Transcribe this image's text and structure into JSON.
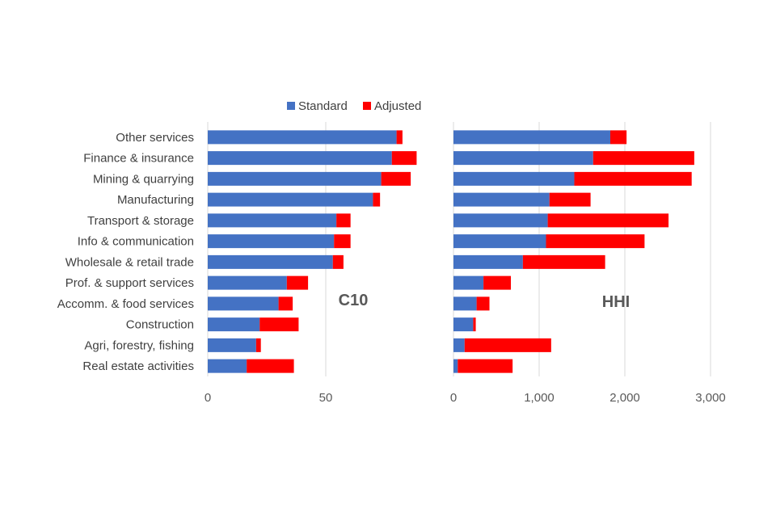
{
  "legend": {
    "standard_label": "Standard",
    "adjusted_label": "Adjusted"
  },
  "colors": {
    "standard": "#4472C4",
    "adjusted": "#FF0000",
    "grid": "#D9D9D9"
  },
  "chart_data": [
    {
      "type": "bar",
      "orientation": "horizontal",
      "stacked": true,
      "title": "C10",
      "categories": [
        "Other services",
        "Finance & insurance",
        "Mining & quarrying",
        "Manufacturing",
        "Transport & storage",
        "Info & communication",
        "Wholesale & retail trade",
        "Prof. & support services",
        "Accomm. & food services",
        "Construction",
        "Agri, forestry, fishing",
        "Real estate activities"
      ],
      "series": [
        {
          "name": "Standard",
          "values": [
            80,
            78,
            73.5,
            70,
            54.5,
            53.5,
            53,
            33.5,
            30,
            22,
            20.5,
            16.5
          ]
        },
        {
          "name": "Adjusted",
          "values": [
            2.5,
            10.5,
            12.5,
            3,
            6,
            7,
            4.5,
            9,
            6,
            16.5,
            2,
            20
          ]
        }
      ],
      "xlim": [
        0,
        100
      ],
      "ticks": [
        0,
        50
      ],
      "tick_labels": [
        "0",
        "50"
      ],
      "grid": true,
      "legend_position": "top"
    },
    {
      "type": "bar",
      "orientation": "horizontal",
      "stacked": true,
      "title": "HHI",
      "categories": [
        "Other services",
        "Finance & insurance",
        "Mining & quarrying",
        "Manufacturing",
        "Transport & storage",
        "Info & communication",
        "Wholesale & retail trade",
        "Prof. & support services",
        "Accomm. & food services",
        "Construction",
        "Agri, forestry, fishing",
        "Real estate activities"
      ],
      "series": [
        {
          "name": "Standard",
          "values": [
            1830,
            1630,
            1410,
            1120,
            1100,
            1080,
            810,
            350,
            270,
            230,
            130,
            50
          ]
        },
        {
          "name": "Adjusted",
          "values": [
            190,
            1180,
            1370,
            480,
            1410,
            1150,
            960,
            320,
            150,
            30,
            1010,
            640
          ]
        }
      ],
      "xlim": [
        0,
        3000
      ],
      "ticks": [
        0,
        1000,
        2000,
        3000
      ],
      "tick_labels": [
        "0",
        "1,000",
        "2,000",
        "3,000"
      ],
      "grid": true,
      "legend_position": "top"
    }
  ]
}
